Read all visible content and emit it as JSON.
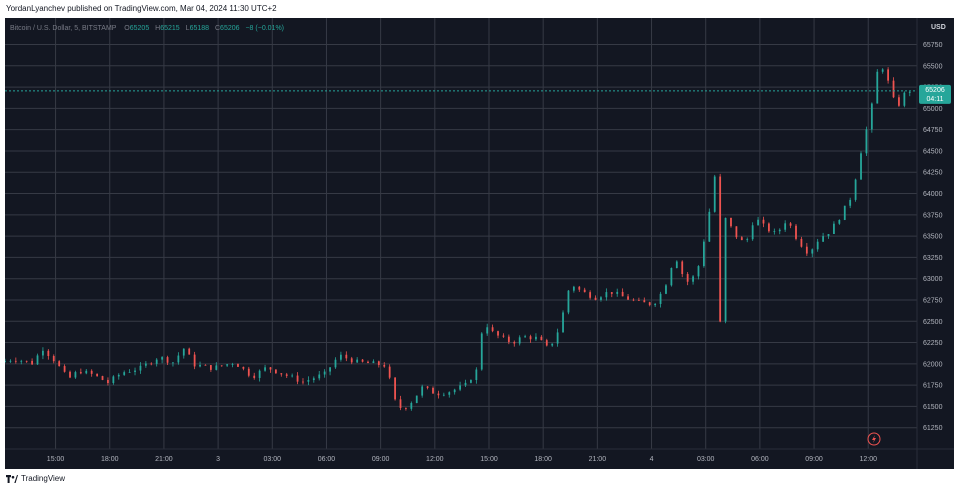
{
  "header": {
    "published_line": "YordanLyanchev published on TradingView.com, Mar 04, 2024 11:30 UTC+2"
  },
  "footer": {
    "brand": "TradingView"
  },
  "chart_data": {
    "type": "candlestick",
    "symbol_line": "Bitcoin / U.S. Dollar, 5, BITSTAMP",
    "ohlc": {
      "o_label": "O",
      "o": "65205",
      "h_label": "H",
      "h": "65215",
      "l_label": "L",
      "l": "65188",
      "c_label": "C",
      "c": "65206",
      "change": "−8 (−0.01%)"
    },
    "currency": "USD",
    "last_price": "65206",
    "countdown": "04:11",
    "ylim": [
      61000,
      65850
    ],
    "y_ticks": [
      61250,
      61500,
      61750,
      62000,
      62250,
      62500,
      62750,
      63000,
      63250,
      63500,
      63750,
      64000,
      64250,
      64500,
      64750,
      65000,
      65250,
      65500,
      65750
    ],
    "y_tick_labels": [
      "61250",
      "61500",
      "61750",
      "62000",
      "62250",
      "62500",
      "62750",
      "63000",
      "63250",
      "63500",
      "63750",
      "64000",
      "64250",
      "64500",
      "64750",
      "65000",
      "65250",
      "65500",
      "65750"
    ],
    "x_ticks": [
      "15:00",
      "18:00",
      "21:00",
      "3",
      "03:00",
      "06:00",
      "09:00",
      "12:00",
      "15:00",
      "18:00",
      "21:00",
      "4",
      "03:00",
      "06:00",
      "09:00",
      "12:00"
    ],
    "x_tick_hours": [
      15,
      18,
      21,
      24,
      27,
      30,
      33,
      36,
      39,
      42,
      45,
      48,
      51,
      54,
      57,
      60
    ],
    "x_range_hours": [
      12.2,
      62.7
    ],
    "grid": true,
    "colors": {
      "background": "#131722",
      "up": "#26a69a",
      "down": "#ef5350",
      "grid": "#363a45",
      "axis_text": "#b2b5be"
    },
    "price_path": [
      [
        12.2,
        62020
      ],
      [
        13.0,
        62060
      ],
      [
        14.0,
        62010
      ],
      [
        14.6,
        62180
      ],
      [
        15.2,
        62050
      ],
      [
        16.0,
        61820
      ],
      [
        16.6,
        61920
      ],
      [
        17.4,
        61870
      ],
      [
        18.2,
        61780
      ],
      [
        19.0,
        61900
      ],
      [
        20.0,
        61950
      ],
      [
        21.0,
        62080
      ],
      [
        21.8,
        62020
      ],
      [
        22.4,
        62180
      ],
      [
        23.0,
        61990
      ],
      [
        24.0,
        61950
      ],
      [
        25.2,
        62020
      ],
      [
        26.2,
        61850
      ],
      [
        27.0,
        61960
      ],
      [
        28.0,
        61870
      ],
      [
        29.0,
        61790
      ],
      [
        30.2,
        61880
      ],
      [
        31.0,
        62100
      ],
      [
        32.0,
        62020
      ],
      [
        33.0,
        62000
      ],
      [
        33.6,
        61980
      ],
      [
        34.2,
        61480
      ],
      [
        34.8,
        61500
      ],
      [
        35.6,
        61720
      ],
      [
        36.4,
        61650
      ],
      [
        37.2,
        61680
      ],
      [
        38.0,
        61750
      ],
      [
        38.6,
        61920
      ],
      [
        39.0,
        62520
      ],
      [
        39.4,
        62380
      ],
      [
        40.0,
        62300
      ],
      [
        40.6,
        62250
      ],
      [
        41.2,
        62320
      ],
      [
        42.0,
        62300
      ],
      [
        42.6,
        62170
      ],
      [
        43.2,
        62420
      ],
      [
        43.8,
        62950
      ],
      [
        44.4,
        62850
      ],
      [
        45.2,
        62780
      ],
      [
        46.0,
        62850
      ],
      [
        46.8,
        62780
      ],
      [
        47.6,
        62720
      ],
      [
        48.4,
        62700
      ],
      [
        49.0,
        62880
      ],
      [
        49.6,
        63280
      ],
      [
        50.2,
        62950
      ],
      [
        50.8,
        63050
      ],
      [
        51.4,
        63650
      ],
      [
        51.8,
        64200
      ],
      [
        52.0,
        63600
      ],
      [
        52.1,
        62480
      ],
      [
        52.4,
        63700
      ],
      [
        53.0,
        63500
      ],
      [
        53.5,
        63400
      ],
      [
        54.0,
        63720
      ],
      [
        54.6,
        63600
      ],
      [
        55.2,
        63520
      ],
      [
        55.8,
        63700
      ],
      [
        56.4,
        63450
      ],
      [
        57.0,
        63300
      ],
      [
        57.6,
        63480
      ],
      [
        58.2,
        63560
      ],
      [
        58.8,
        63750
      ],
      [
        59.4,
        63980
      ],
      [
        60.0,
        64600
      ],
      [
        60.4,
        64900
      ],
      [
        60.8,
        65420
      ],
      [
        61.2,
        65500
      ],
      [
        61.6,
        65120
      ],
      [
        62.0,
        65050
      ],
      [
        62.4,
        65206
      ]
    ]
  }
}
